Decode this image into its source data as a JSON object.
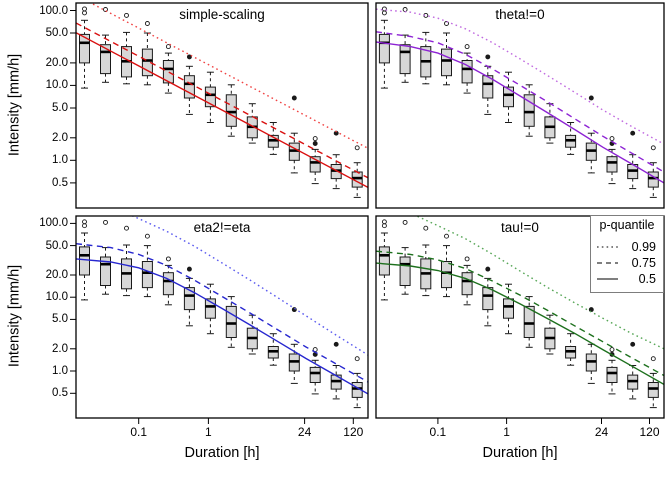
{
  "figure": {
    "y_axis_label": "Intensity [mm/h]",
    "x_axis_label": "Duration [h]",
    "x_tick_labels": [
      "0.1",
      "1",
      "24",
      "120"
    ],
    "x_tick_values": [
      0.1,
      1,
      24,
      120
    ],
    "y_tick_labels": [
      "100.0",
      "50.0",
      "20.0",
      "10.0",
      "5.0",
      "2.0",
      "1.0",
      "0.5"
    ],
    "y_tick_values": [
      100,
      50,
      20,
      10,
      5,
      2,
      1,
      0.5
    ]
  },
  "legend": {
    "title": "p-quantile",
    "entries": [
      {
        "style": "dotted",
        "label": "0.99"
      },
      {
        "style": "dashed",
        "label": "0.75"
      },
      {
        "style": "solid",
        "label": "0.5"
      }
    ],
    "line_color": "#555555",
    "border_color": "#7d7d7d"
  },
  "chart_data": {
    "type": "boxplot-with-quantile-lines",
    "x_scale": "log10",
    "y_scale": "log10",
    "x_range_log10": [
      -1.9,
      2.29
    ],
    "y_range_log10": [
      -0.636,
      2.1
    ],
    "box_fill": "#d7d7d7",
    "box_stroke": "#1a1a1a",
    "box_positions_log10": [
      -1.778,
      -1.477,
      -1.176,
      -0.875,
      -0.574,
      -0.273,
      0.028,
      0.329,
      0.63,
      0.931,
      1.232,
      1.533,
      1.834,
      2.135
    ],
    "boxplots": [
      {
        "lo": 9.2,
        "q1": 20.0,
        "med": 37.0,
        "q3": 48.0,
        "hi": 74.0,
        "out": [
          {
            "value": 93,
            "filled": false
          },
          {
            "value": 105,
            "filled": false
          }
        ]
      },
      {
        "lo": 11.0,
        "q1": 14.4,
        "med": 28.0,
        "q3": 35.0,
        "hi": 47.0,
        "out": [
          {
            "value": 103,
            "filled": false
          }
        ]
      },
      {
        "lo": 10.5,
        "q1": 13.0,
        "med": 21.0,
        "q3": 33.0,
        "hi": 51.0,
        "out": [
          {
            "value": 86,
            "filled": false
          }
        ]
      },
      {
        "lo": 10.2,
        "q1": 13.5,
        "med": 21.5,
        "q3": 30.5,
        "hi": 50.0,
        "out": [
          {
            "value": 67,
            "filled": false
          }
        ]
      },
      {
        "lo": 7.9,
        "q1": 10.8,
        "med": 16.6,
        "q3": 21.5,
        "hi": 27.0,
        "out": [
          {
            "value": 33,
            "filled": false
          }
        ]
      },
      {
        "lo": 4.1,
        "q1": 6.8,
        "med": 10.5,
        "q3": 13.5,
        "hi": 18.0,
        "out": [
          {
            "value": 24,
            "filled": true
          }
        ]
      },
      {
        "lo": 3.2,
        "q1": 5.2,
        "med": 7.5,
        "q3": 9.5,
        "hi": 15.0,
        "out": []
      },
      {
        "lo": 2.1,
        "q1": 2.85,
        "med": 4.4,
        "q3": 7.5,
        "hi": 10.2,
        "out": []
      },
      {
        "lo": 1.7,
        "q1": 2.0,
        "med": 2.8,
        "q3": 3.8,
        "hi": 5.7,
        "out": []
      },
      {
        "lo": 1.2,
        "q1": 1.5,
        "med": 1.85,
        "q3": 2.15,
        "hi": 3.2,
        "out": []
      },
      {
        "lo": 0.68,
        "q1": 1.0,
        "med": 1.35,
        "q3": 1.7,
        "hi": 2.3,
        "out": [
          {
            "value": 6.8,
            "filled": true
          }
        ]
      },
      {
        "lo": 0.49,
        "q1": 0.7,
        "med": 0.94,
        "q3": 1.12,
        "hi": 1.4,
        "out": [
          {
            "value": 1.95,
            "filled": false
          },
          {
            "value": 1.68,
            "filled": true
          }
        ]
      },
      {
        "lo": 0.42,
        "q1": 0.57,
        "med": 0.73,
        "q3": 0.88,
        "hi": 1.19,
        "out": [
          {
            "value": 2.3,
            "filled": true
          }
        ]
      },
      {
        "lo": 0.32,
        "q1": 0.44,
        "med": 0.58,
        "q3": 0.7,
        "hi": 0.93,
        "out": [
          {
            "value": 1.47,
            "filled": false
          }
        ]
      }
    ],
    "panels": [
      {
        "title": "simple-scaling",
        "color": "#d90f0f",
        "dotted_color": "#f04343",
        "lines": {
          "p50": [
            [
              -1.9,
              50.5
            ],
            [
              2.29,
              0.435
            ]
          ],
          "p75": [
            [
              -1.9,
              68.0
            ],
            [
              2.29,
              0.585
            ]
          ],
          "p99": [
            [
              -1.9,
              160.0
            ],
            [
              2.29,
              1.45
            ]
          ]
        }
      },
      {
        "title": "theta!=0",
        "color": "#8d23d4",
        "dotted_color": "#c06ae0",
        "lines": {
          "p50": [
            [
              -1.9,
              38
            ],
            [
              -1.4,
              33
            ],
            [
              -1.0,
              27
            ],
            [
              -0.6,
              19
            ],
            [
              -0.2,
              12
            ],
            [
              0.2,
              7.2
            ],
            [
              0.6,
              4.3
            ],
            [
              1.0,
              2.55
            ],
            [
              1.4,
              1.5
            ],
            [
              1.8,
              0.92
            ],
            [
              2.29,
              0.5
            ]
          ],
          "p75": [
            [
              -1.9,
              52
            ],
            [
              -1.4,
              45
            ],
            [
              -1.0,
              37
            ],
            [
              -0.6,
              26
            ],
            [
              -0.2,
              16.5
            ],
            [
              0.2,
              10
            ],
            [
              0.6,
              6.0
            ],
            [
              1.0,
              3.55
            ],
            [
              1.4,
              2.1
            ],
            [
              1.8,
              1.28
            ],
            [
              2.29,
              0.7
            ]
          ],
          "p99": [
            [
              -1.9,
              104
            ],
            [
              -1.4,
              95
            ],
            [
              -1.0,
              79
            ],
            [
              -0.6,
              57
            ],
            [
              -0.2,
              37
            ],
            [
              0.2,
              22.5
            ],
            [
              0.6,
              13.5
            ],
            [
              1.0,
              8.0
            ],
            [
              1.4,
              4.7
            ],
            [
              1.8,
              2.9
            ],
            [
              2.29,
              1.65
            ]
          ]
        }
      },
      {
        "title": "eta2!=eta",
        "color": "#2727cf",
        "dotted_color": "#5a5aef",
        "lines": {
          "p50": [
            [
              -1.9,
              33
            ],
            [
              -1.4,
              30
            ],
            [
              -1.0,
              25
            ],
            [
              -0.6,
              18
            ],
            [
              -0.2,
              11.5
            ],
            [
              0.2,
              7.0
            ],
            [
              0.6,
              4.2
            ],
            [
              1.0,
              2.5
            ],
            [
              1.4,
              1.48
            ],
            [
              1.8,
              0.9
            ],
            [
              2.29,
              0.49
            ]
          ],
          "p75": [
            [
              -1.9,
              53
            ],
            [
              -1.4,
              47
            ],
            [
              -1.0,
              38
            ],
            [
              -0.6,
              27
            ],
            [
              -0.2,
              17
            ],
            [
              0.2,
              10.2
            ],
            [
              0.6,
              6.1
            ],
            [
              1.0,
              3.6
            ],
            [
              1.4,
              2.12
            ],
            [
              1.8,
              1.3
            ],
            [
              2.29,
              0.71
            ]
          ],
          "p99": [
            [
              -1.35,
              160
            ],
            [
              -1.0,
              116
            ],
            [
              -0.6,
              78
            ],
            [
              -0.2,
              49
            ],
            [
              0.2,
              29
            ],
            [
              0.6,
              17
            ],
            [
              1.0,
              9.8
            ],
            [
              1.4,
              5.6
            ],
            [
              1.8,
              3.2
            ],
            [
              2.29,
              1.65
            ]
          ]
        }
      },
      {
        "title": "tau!=0",
        "color": "#1d701d",
        "dotted_color": "#56a656",
        "lines": {
          "p50": [
            [
              -1.9,
              29
            ],
            [
              -1.4,
              26.5
            ],
            [
              -1.0,
              23
            ],
            [
              -0.6,
              18
            ],
            [
              -0.2,
              12.5
            ],
            [
              0.2,
              8.1
            ],
            [
              0.6,
              5.1
            ],
            [
              1.0,
              3.2
            ],
            [
              1.4,
              1.95
            ],
            [
              1.8,
              1.2
            ],
            [
              2.29,
              0.66
            ]
          ],
          "p75": [
            [
              -1.9,
              42
            ],
            [
              -1.4,
              38
            ],
            [
              -1.0,
              32
            ],
            [
              -0.6,
              24.5
            ],
            [
              -0.2,
              16.5
            ],
            [
              0.2,
              10.6
            ],
            [
              0.6,
              6.6
            ],
            [
              1.0,
              4.05
            ],
            [
              1.4,
              2.5
            ],
            [
              1.8,
              1.55
            ],
            [
              2.29,
              0.87
            ]
          ],
          "p99": [
            [
              -1.55,
              160
            ],
            [
              -1.3,
              125
            ],
            [
              -1.0,
              93
            ],
            [
              -0.6,
              62
            ],
            [
              -0.2,
              38
            ],
            [
              0.2,
              22.5
            ],
            [
              0.6,
              13.5
            ],
            [
              1.0,
              8.3
            ],
            [
              1.4,
              5.2
            ],
            [
              1.8,
              3.3
            ],
            [
              2.29,
              2.0
            ]
          ]
        }
      }
    ]
  }
}
